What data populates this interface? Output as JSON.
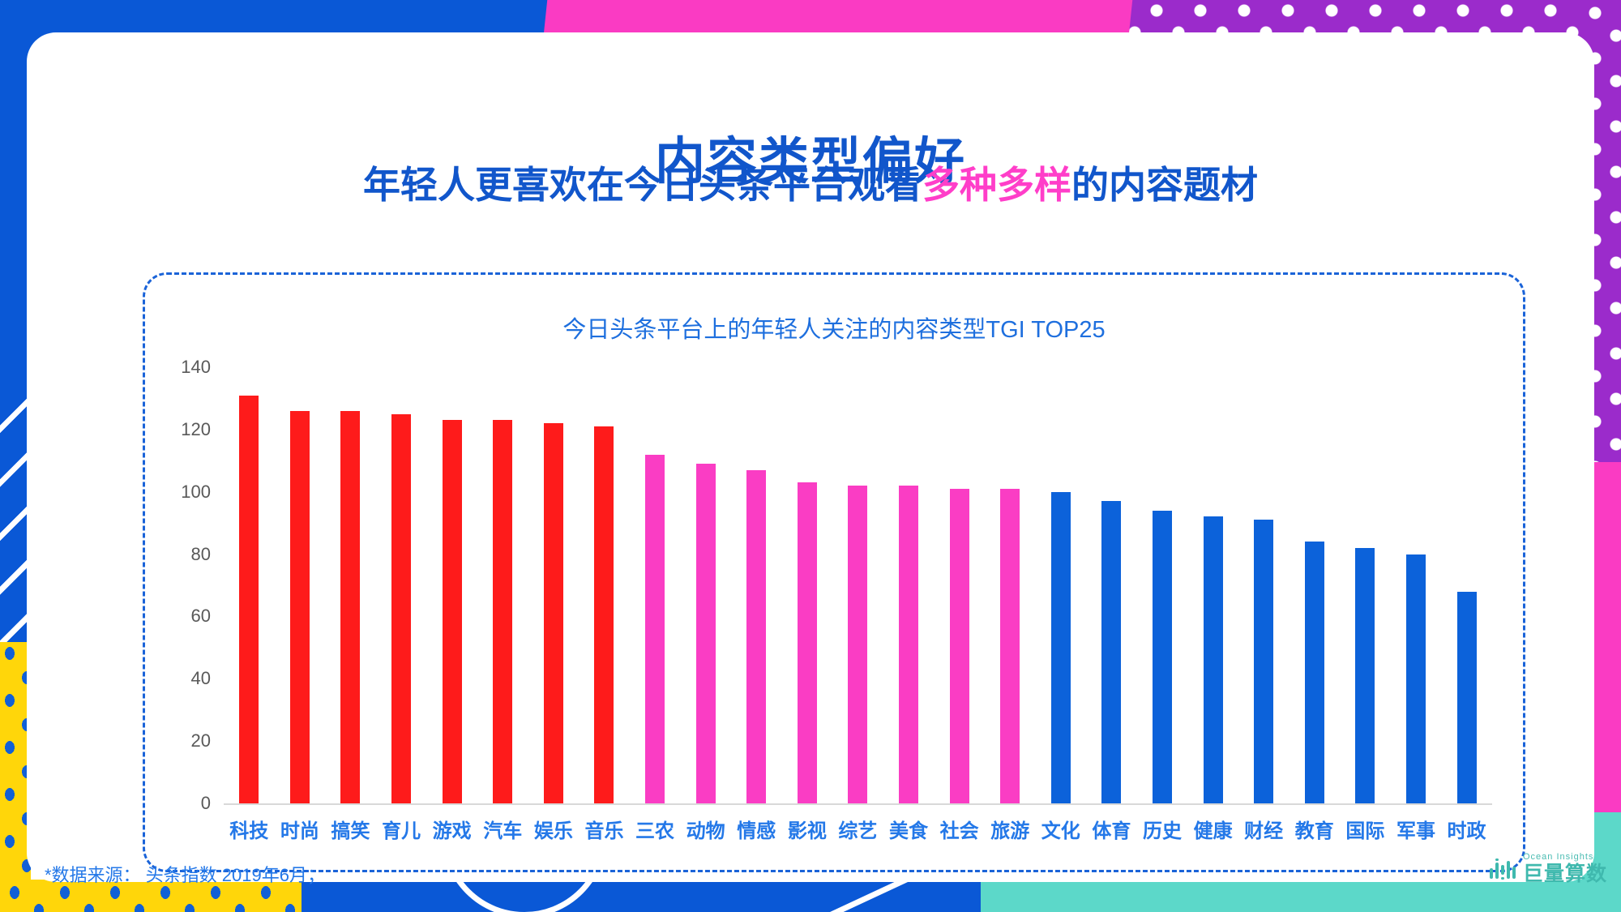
{
  "header": {
    "title": "内容类型偏好",
    "subtitle_pre": "年轻人更喜欢在今日头条平台观看",
    "subtitle_highlight": "多种多样",
    "subtitle_post": "的内容题材"
  },
  "chart_data": {
    "type": "bar",
    "title": "今日头条平台上的年轻人关注的内容类型TGI TOP25",
    "categories": [
      "科技",
      "时尚",
      "搞笑",
      "育儿",
      "游戏",
      "汽车",
      "娱乐",
      "音乐",
      "三农",
      "动物",
      "情感",
      "影视",
      "综艺",
      "美食",
      "社会",
      "旅游",
      "文化",
      "体育",
      "历史",
      "健康",
      "财经",
      "教育",
      "国际",
      "军事",
      "时政"
    ],
    "values": [
      131,
      126,
      126,
      125,
      123,
      123,
      122,
      121,
      112,
      109,
      107,
      103,
      102,
      102,
      101,
      101,
      100,
      97,
      94,
      92,
      91,
      84,
      82,
      80,
      68
    ],
    "bar_colors": [
      "red",
      "red",
      "red",
      "red",
      "red",
      "red",
      "red",
      "red",
      "pink",
      "pink",
      "pink",
      "pink",
      "pink",
      "pink",
      "pink",
      "pink",
      "blue",
      "blue",
      "blue",
      "blue",
      "blue",
      "blue",
      "blue",
      "blue",
      "blue"
    ],
    "ylim": [
      0,
      140
    ],
    "yticks": [
      0,
      20,
      40,
      60,
      80,
      100,
      120,
      140
    ],
    "grid": false,
    "legend": null
  },
  "footer": {
    "source": "*数据来源： 头条指数 2019年6月；"
  },
  "logo": {
    "brand_en": "Ocean Insights",
    "brand_cn": "巨量算数"
  },
  "palette": {
    "title_blue": "#1156CB",
    "highlight_pink": "#FF3EC9",
    "chart_title_blue": "#1E6FDE",
    "category_blue": "#2478E8",
    "tick_gray": "#595959",
    "bar_red": "#FE1B1B",
    "bar_pink": "#FA3DC4",
    "bar_blue": "#0C62DA",
    "bg_blue": "#0A58D6",
    "bg_pink": "#FA3BC3",
    "bg_purple": "#9B2BCB",
    "bg_yellow": "#FFD60A",
    "bg_teal": "#5CD8C9",
    "logo_teal": "#3FB9AE",
    "dashed_border": "#1A63D8",
    "axis_line": "#D9D9D9"
  }
}
